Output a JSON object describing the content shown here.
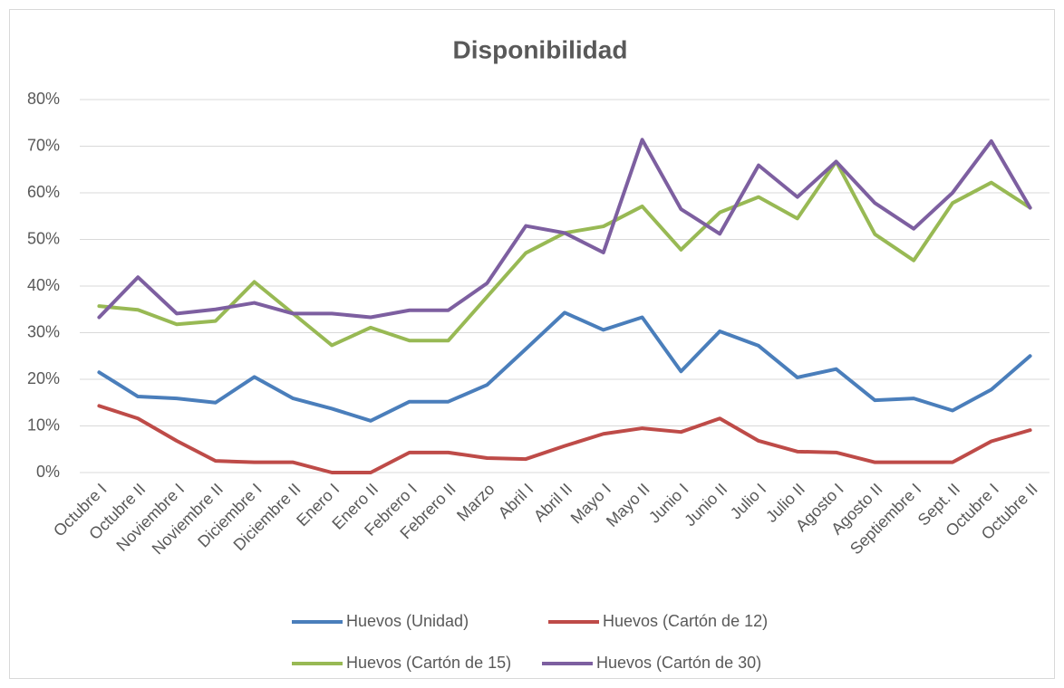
{
  "chart_data": {
    "type": "line",
    "title": "Disponibilidad",
    "categories": [
      "Octubre I",
      "Octubre II",
      "Noviembre I",
      "Noviembre II",
      "Diciembre I",
      "Diciembre II",
      "Enero I",
      "Enero II",
      "Febrero I",
      "Febrero II",
      "Marzo",
      "Abril I",
      "Abril II",
      "Mayo I",
      "Mayo II",
      "Junio I",
      "Junio II",
      "Julio I",
      "Julio II",
      "Agosto I",
      "Agosto II",
      "Septiembre I",
      "Sept. II",
      "Octubre I",
      "Octubre II"
    ],
    "series": [
      {
        "name": "Huevos (Unidad)",
        "color": "#4a7ebb",
        "values": [
          21.5,
          16.3,
          15.9,
          15.0,
          20.5,
          15.9,
          13.7,
          11.1,
          15.2,
          15.2,
          18.8,
          26.5,
          34.3,
          30.6,
          33.3,
          21.7,
          30.3,
          27.2,
          20.4,
          22.2,
          15.5,
          15.9,
          13.3,
          17.8,
          25.0
        ]
      },
      {
        "name": "Huevos (Cartón de 12)",
        "color": "#be4b48",
        "values": [
          14.3,
          11.6,
          6.8,
          2.5,
          2.2,
          2.2,
          0,
          0,
          4.3,
          4.3,
          3.1,
          2.9,
          5.7,
          8.3,
          9.5,
          8.7,
          11.6,
          6.8,
          4.5,
          4.3,
          2.2,
          2.2,
          2.2,
          6.7,
          9.1
        ]
      },
      {
        "name": "Huevos (Cartón de 15)",
        "color": "#98b954",
        "values": [
          35.7,
          34.9,
          31.8,
          32.5,
          40.9,
          34.1,
          27.3,
          31.1,
          28.3,
          28.3,
          37.7,
          47.1,
          51.4,
          52.8,
          57.1,
          47.8,
          55.8,
          59.1,
          54.5,
          66.7,
          51.1,
          45.5,
          57.8,
          62.2,
          56.8
        ]
      },
      {
        "name": "Huevos (Cartón de 30)",
        "color": "#7d5fa0",
        "values": [
          33.3,
          41.9,
          34.1,
          35.0,
          36.4,
          34.1,
          34.1,
          33.3,
          34.8,
          34.8,
          40.6,
          52.9,
          51.4,
          47.2,
          71.4,
          56.5,
          51.2,
          65.9,
          59.1,
          66.7,
          57.8,
          52.3,
          60.0,
          71.1,
          56.8
        ]
      }
    ],
    "ylim": [
      0,
      80
    ],
    "yticks": [
      {
        "value": 0,
        "label": "0%"
      },
      {
        "value": 10,
        "label": "10%"
      },
      {
        "value": 20,
        "label": "20%"
      },
      {
        "value": 30,
        "label": "30%"
      },
      {
        "value": 40,
        "label": "40%"
      },
      {
        "value": 50,
        "label": "50%"
      },
      {
        "value": 60,
        "label": "60%"
      },
      {
        "value": 70,
        "label": "70%"
      },
      {
        "value": 80,
        "label": "80%"
      }
    ],
    "grid": true,
    "legend": "bottom"
  }
}
